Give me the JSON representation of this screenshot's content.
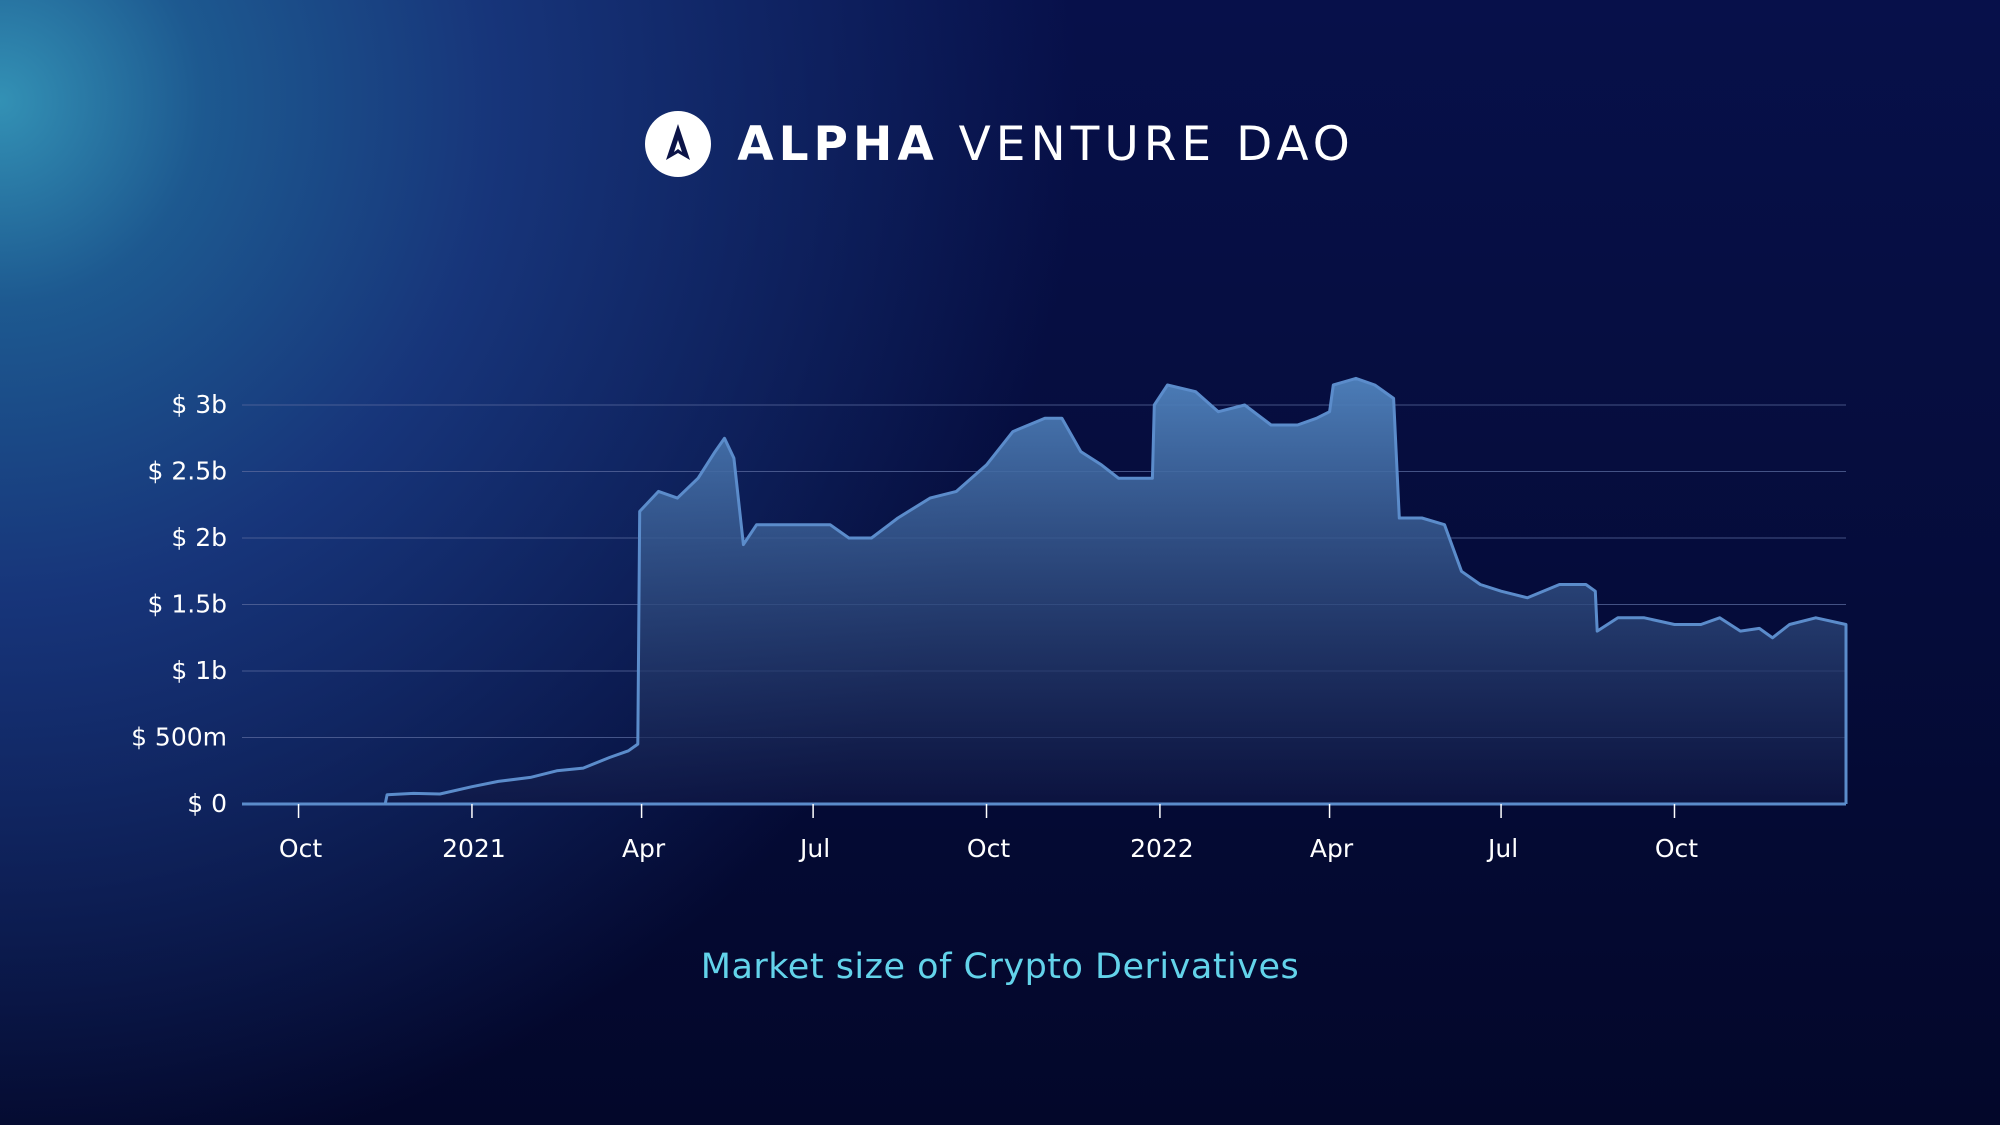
{
  "brand": {
    "name_bold": "ALPHA",
    "name_rest": "VENTURE DAO",
    "logo_icon": "mountain-a-icon"
  },
  "colors": {
    "background_top": "#07104a",
    "background_bottom": "#03072a",
    "glow": "#3391b5",
    "series_line": "#5b8ccb",
    "series_fill_top": "#4f82bd",
    "series_fill_bottom": "#101845",
    "gridline": "#5a6a9e",
    "title": "#63d3ea",
    "text": "#ffffff"
  },
  "chart_data": {
    "type": "area",
    "title": "Market size of Crypto Derivatives",
    "xlabel": "",
    "ylabel": "",
    "x_axis": {
      "type": "date",
      "range": [
        "2020-09-01",
        "2022-12-31"
      ],
      "ticks": [
        {
          "date": "2020-10-01",
          "label": "Oct"
        },
        {
          "date": "2021-01-01",
          "label": "2021"
        },
        {
          "date": "2021-04-01",
          "label": "Apr"
        },
        {
          "date": "2021-07-01",
          "label": "Jul"
        },
        {
          "date": "2021-10-01",
          "label": "Oct"
        },
        {
          "date": "2022-01-01",
          "label": "2022"
        },
        {
          "date": "2022-04-01",
          "label": "Apr"
        },
        {
          "date": "2022-07-01",
          "label": "Jul"
        },
        {
          "date": "2022-10-01",
          "label": "Oct"
        }
      ]
    },
    "y_axis": {
      "range": [
        0,
        3000000000
      ],
      "ticks": [
        {
          "value": 0,
          "label": "$ 0"
        },
        {
          "value": 500000000,
          "label": "$ 500m"
        },
        {
          "value": 1000000000,
          "label": "$ 1b"
        },
        {
          "value": 1500000000,
          "label": "$ 1.5b"
        },
        {
          "value": 2000000000,
          "label": "$ 2b"
        },
        {
          "value": 2500000000,
          "label": "$ 2.5b"
        },
        {
          "value": 3000000000,
          "label": "$ 3b"
        }
      ]
    },
    "grid": true,
    "legend": "none",
    "series": [
      {
        "points": [
          [
            "2020-09-01",
            0
          ],
          [
            "2020-10-01",
            0
          ],
          [
            "2020-11-01",
            0
          ],
          [
            "2020-11-16",
            0
          ],
          [
            "2020-11-17",
            70000000
          ],
          [
            "2020-12-01",
            80000000
          ],
          [
            "2020-12-15",
            75000000
          ],
          [
            "2021-01-01",
            130000000
          ],
          [
            "2021-01-15",
            170000000
          ],
          [
            "2021-02-01",
            200000000
          ],
          [
            "2021-02-15",
            250000000
          ],
          [
            "2021-03-01",
            270000000
          ],
          [
            "2021-03-15",
            350000000
          ],
          [
            "2021-03-25",
            400000000
          ],
          [
            "2021-03-30",
            450000000
          ],
          [
            "2021-03-31",
            2200000000
          ],
          [
            "2021-04-10",
            2350000000
          ],
          [
            "2021-04-20",
            2300000000
          ],
          [
            "2021-05-01",
            2450000000
          ],
          [
            "2021-05-10",
            2650000000
          ],
          [
            "2021-05-15",
            2750000000
          ],
          [
            "2021-05-20",
            2600000000
          ],
          [
            "2021-05-25",
            1950000000
          ],
          [
            "2021-06-01",
            2100000000
          ],
          [
            "2021-06-15",
            2100000000
          ],
          [
            "2021-07-01",
            2100000000
          ],
          [
            "2021-07-10",
            2100000000
          ],
          [
            "2021-07-20",
            2000000000
          ],
          [
            "2021-08-01",
            2000000000
          ],
          [
            "2021-08-15",
            2150000000
          ],
          [
            "2021-09-01",
            2300000000
          ],
          [
            "2021-09-15",
            2350000000
          ],
          [
            "2021-10-01",
            2550000000
          ],
          [
            "2021-10-15",
            2800000000
          ],
          [
            "2021-11-01",
            2900000000
          ],
          [
            "2021-11-10",
            2900000000
          ],
          [
            "2021-11-20",
            2650000000
          ],
          [
            "2021-12-01",
            2550000000
          ],
          [
            "2021-12-10",
            2450000000
          ],
          [
            "2021-12-28",
            2450000000
          ],
          [
            "2021-12-29",
            3000000000
          ],
          [
            "2022-01-05",
            3150000000
          ],
          [
            "2022-01-20",
            3100000000
          ],
          [
            "2022-02-01",
            2950000000
          ],
          [
            "2022-02-15",
            3000000000
          ],
          [
            "2022-03-01",
            2850000000
          ],
          [
            "2022-03-15",
            2850000000
          ],
          [
            "2022-03-25",
            2900000000
          ],
          [
            "2022-04-01",
            2950000000
          ],
          [
            "2022-04-03",
            3150000000
          ],
          [
            "2022-04-15",
            3200000000
          ],
          [
            "2022-04-25",
            3150000000
          ],
          [
            "2022-05-05",
            3050000000
          ],
          [
            "2022-05-08",
            2150000000
          ],
          [
            "2022-05-20",
            2150000000
          ],
          [
            "2022-06-01",
            2100000000
          ],
          [
            "2022-06-10",
            1750000000
          ],
          [
            "2022-06-20",
            1650000000
          ],
          [
            "2022-07-01",
            1600000000
          ],
          [
            "2022-07-15",
            1550000000
          ],
          [
            "2022-08-01",
            1650000000
          ],
          [
            "2022-08-15",
            1650000000
          ],
          [
            "2022-08-20",
            1600000000
          ],
          [
            "2022-08-21",
            1300000000
          ],
          [
            "2022-09-01",
            1400000000
          ],
          [
            "2022-09-15",
            1400000000
          ],
          [
            "2022-10-01",
            1350000000
          ],
          [
            "2022-10-15",
            1350000000
          ],
          [
            "2022-10-25",
            1400000000
          ],
          [
            "2022-11-05",
            1300000000
          ],
          [
            "2022-11-15",
            1320000000
          ],
          [
            "2022-11-22",
            1250000000
          ],
          [
            "2022-12-01",
            1350000000
          ],
          [
            "2022-12-15",
            1400000000
          ],
          [
            "2022-12-31",
            1350000000
          ]
        ]
      }
    ]
  }
}
